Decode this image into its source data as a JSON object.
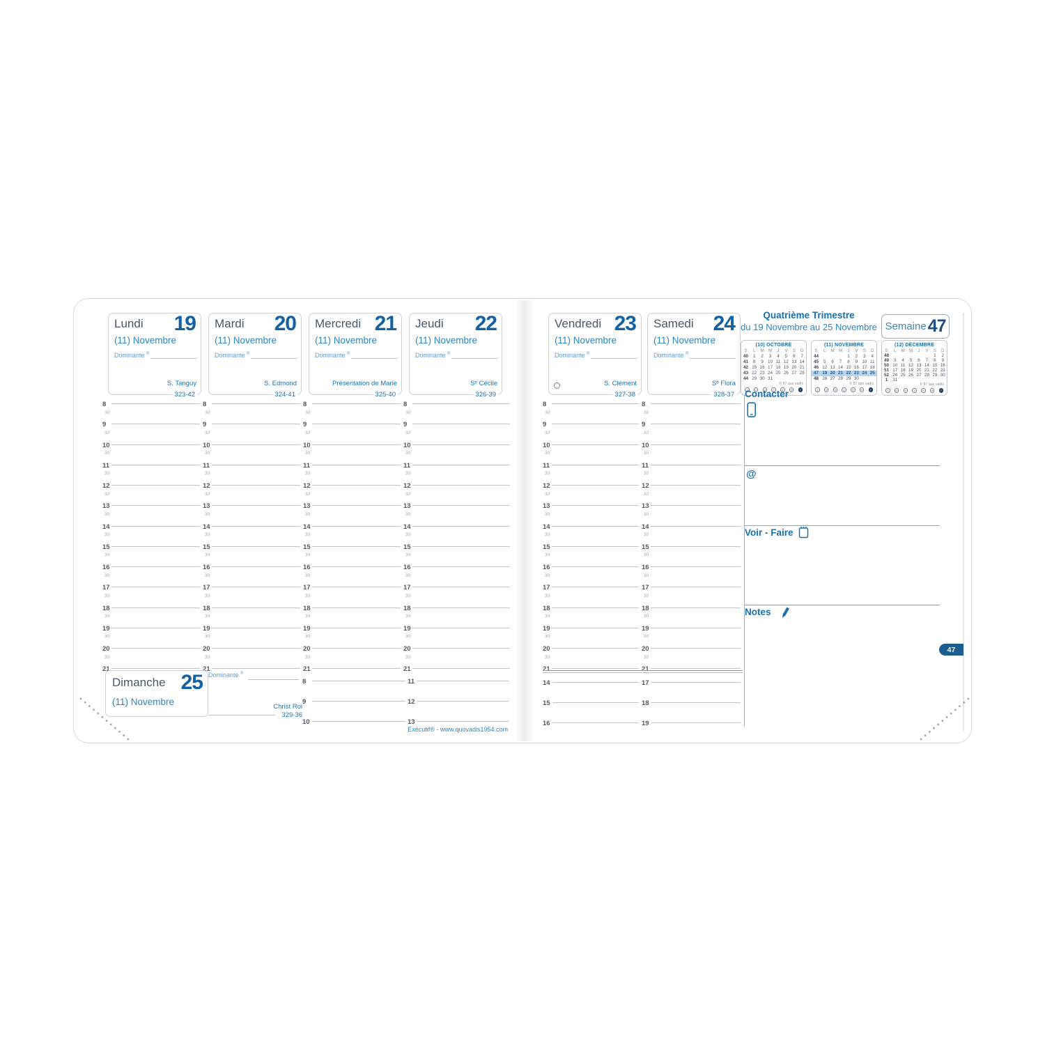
{
  "week": {
    "label": "Semaine",
    "number": "47",
    "tab": "47"
  },
  "quarter": {
    "title": "Quatrième Trimestre",
    "range": "du 19 Novembre au 25 Novembre"
  },
  "labels": {
    "registered": "®"
  },
  "days": [
    {
      "name": "Lundi",
      "number": "19",
      "month": "(11) Novembre",
      "dominante": "Dominante",
      "saint": "S. Tanguy",
      "code": "323-42",
      "moon": false
    },
    {
      "name": "Mardi",
      "number": "20",
      "month": "(11) Novembre",
      "dominante": "Dominante",
      "saint": "S. Edmond",
      "code": "324-41",
      "moon": false
    },
    {
      "name": "Mercredi",
      "number": "21",
      "month": "(11) Novembre",
      "dominante": "Dominante",
      "saint": "Présentation de Marie",
      "code": "325-40",
      "moon": false
    },
    {
      "name": "Jeudi",
      "number": "22",
      "month": "(11) Novembre",
      "dominante": "Dominante",
      "saint": "Sᵉ Cécile",
      "code": "326-39",
      "moon": false
    },
    {
      "name": "Vendredi",
      "number": "23",
      "month": "(11) Novembre",
      "dominante": "Dominante",
      "saint": "S. Clément",
      "code": "327-38",
      "moon": true
    },
    {
      "name": "Samedi",
      "number": "24",
      "month": "(11) Novembre",
      "dominante": "Dominante",
      "saint": "Sᵉ Flora",
      "code": "328-37",
      "moon": false
    }
  ],
  "sunday": {
    "name": "Dimanche",
    "number": "25",
    "month": "(11) Novembre",
    "dominante": "Dominante",
    "saint": "Christ Roi",
    "code": "329-36",
    "hour_groups": [
      [
        "8",
        "9",
        "10"
      ],
      [
        "11",
        "12",
        "13"
      ],
      [
        "14",
        "15",
        "16"
      ],
      [
        "17",
        "18",
        "19"
      ]
    ]
  },
  "grid": {
    "hours": [
      "8",
      "9",
      "10",
      "11",
      "12",
      "13",
      "14",
      "15",
      "16",
      "17",
      "18",
      "19",
      "20",
      "21"
    ],
    "half_label": "30"
  },
  "mini_calendars": [
    {
      "title": "(10) OCTOBRE",
      "header": [
        "S",
        "L",
        "M",
        "M",
        "J",
        "V",
        "S",
        "D"
      ],
      "rows": [
        [
          "40",
          "1",
          "2",
          "3",
          "4",
          "5",
          "6",
          "7"
        ],
        [
          "41",
          "8",
          "9",
          "10",
          "11",
          "12",
          "13",
          "14"
        ],
        [
          "42",
          "15",
          "16",
          "17",
          "18",
          "19",
          "20",
          "21"
        ],
        [
          "43",
          "22",
          "23",
          "24",
          "25",
          "26",
          "27",
          "28"
        ],
        [
          "44",
          "29",
          "30",
          "31",
          "",
          "",
          "",
          ""
        ]
      ],
      "highlight_row": -1,
      "copyright": "© 87 quo vadis",
      "footer_circles": [
        "1",
        "2",
        "3",
        "4",
        "5",
        "6",
        "7"
      ]
    },
    {
      "title": "(11) NOVEMBRE",
      "header": [
        "S",
        "L",
        "M",
        "M",
        "J",
        "V",
        "S",
        "D"
      ],
      "rows": [
        [
          "44",
          "",
          "",
          "",
          "1",
          "2",
          "3",
          "4"
        ],
        [
          "45",
          "5",
          "6",
          "7",
          "8",
          "9",
          "10",
          "11"
        ],
        [
          "46",
          "12",
          "13",
          "14",
          "15",
          "16",
          "17",
          "18"
        ],
        [
          "47",
          "19",
          "20",
          "21",
          "22",
          "23",
          "24",
          "25"
        ],
        [
          "48",
          "26",
          "27",
          "28",
          "29",
          "30",
          "",
          ""
        ]
      ],
      "highlight_row": 3,
      "copyright": "© 87 quo vadis",
      "footer_circles": [
        "1",
        "2",
        "3",
        "4",
        "5",
        "6",
        "7"
      ]
    },
    {
      "title": "(12) DÉCEMBRE",
      "header": [
        "S",
        "L",
        "M",
        "M",
        "J",
        "V",
        "S",
        "D"
      ],
      "rows": [
        [
          "48",
          "",
          "",
          "",
          "",
          "",
          "1",
          "2"
        ],
        [
          "49",
          "3",
          "4",
          "5",
          "6",
          "7",
          "8",
          "9"
        ],
        [
          "50",
          "10",
          "11",
          "12",
          "13",
          "14",
          "15",
          "16"
        ],
        [
          "51",
          "17",
          "18",
          "19",
          "20",
          "21",
          "22",
          "23"
        ],
        [
          "52",
          "24",
          "25",
          "26",
          "27",
          "28",
          "29",
          "30"
        ],
        [
          "1",
          "31",
          "",
          "",
          "",
          "",
          "",
          ""
        ]
      ],
      "highlight_row": -1,
      "copyright": "© 87 quo vadis",
      "footer_circles": [
        "1",
        "2",
        "3",
        "4",
        "5",
        "6",
        "7"
      ]
    }
  ],
  "sidebar": {
    "contacter_label": "Contacter",
    "at_symbol": "@",
    "voir_faire_label": "Voir - Faire",
    "notes_label": "Notes"
  },
  "footer": {
    "brand": "Exécutif® - www.quovadis1954.com"
  },
  "colors": {
    "accent_dark": "#1c4e80",
    "day_number": "#1360a3",
    "accent_mid": "#1e73b0",
    "accent_light": "#2e86c1",
    "accent_pale": "#5b9bd5",
    "highlight_bg": "#b9d5ec",
    "tab_bg": "#1b5e8f",
    "line_gray": "#c0c4c8",
    "hour_text": "#57585b"
  }
}
